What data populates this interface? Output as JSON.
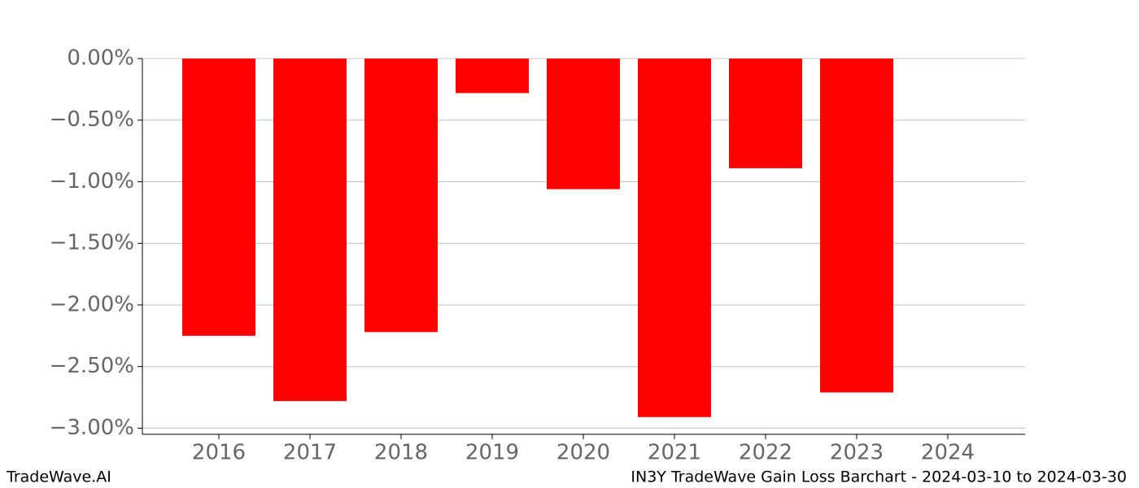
{
  "chart_data": {
    "type": "bar",
    "title": "IN3Y TradeWave Gain Loss Barchart - 2024-03-10 to 2024-03-30",
    "brand": "TradeWave.AI",
    "categories": [
      "2016",
      "2017",
      "2018",
      "2019",
      "2020",
      "2021",
      "2022",
      "2023",
      "2024"
    ],
    "values": [
      -2.25,
      -2.78,
      -2.22,
      -0.28,
      -1.06,
      -2.91,
      -0.89,
      -2.71,
      null
    ],
    "color": "#ff0000",
    "ylim": [
      -3.05,
      0
    ],
    "yticks": [
      {
        "value": 0,
        "label": "0.00%"
      },
      {
        "value": -0.5,
        "label": "−0.50%"
      },
      {
        "value": -1,
        "label": "−1.00%"
      },
      {
        "value": -1.5,
        "label": "−1.50%"
      },
      {
        "value": -2,
        "label": "−2.00%"
      },
      {
        "value": -2.5,
        "label": "−2.50%"
      },
      {
        "value": -3,
        "label": "−3.00%"
      }
    ],
    "grid": true
  }
}
